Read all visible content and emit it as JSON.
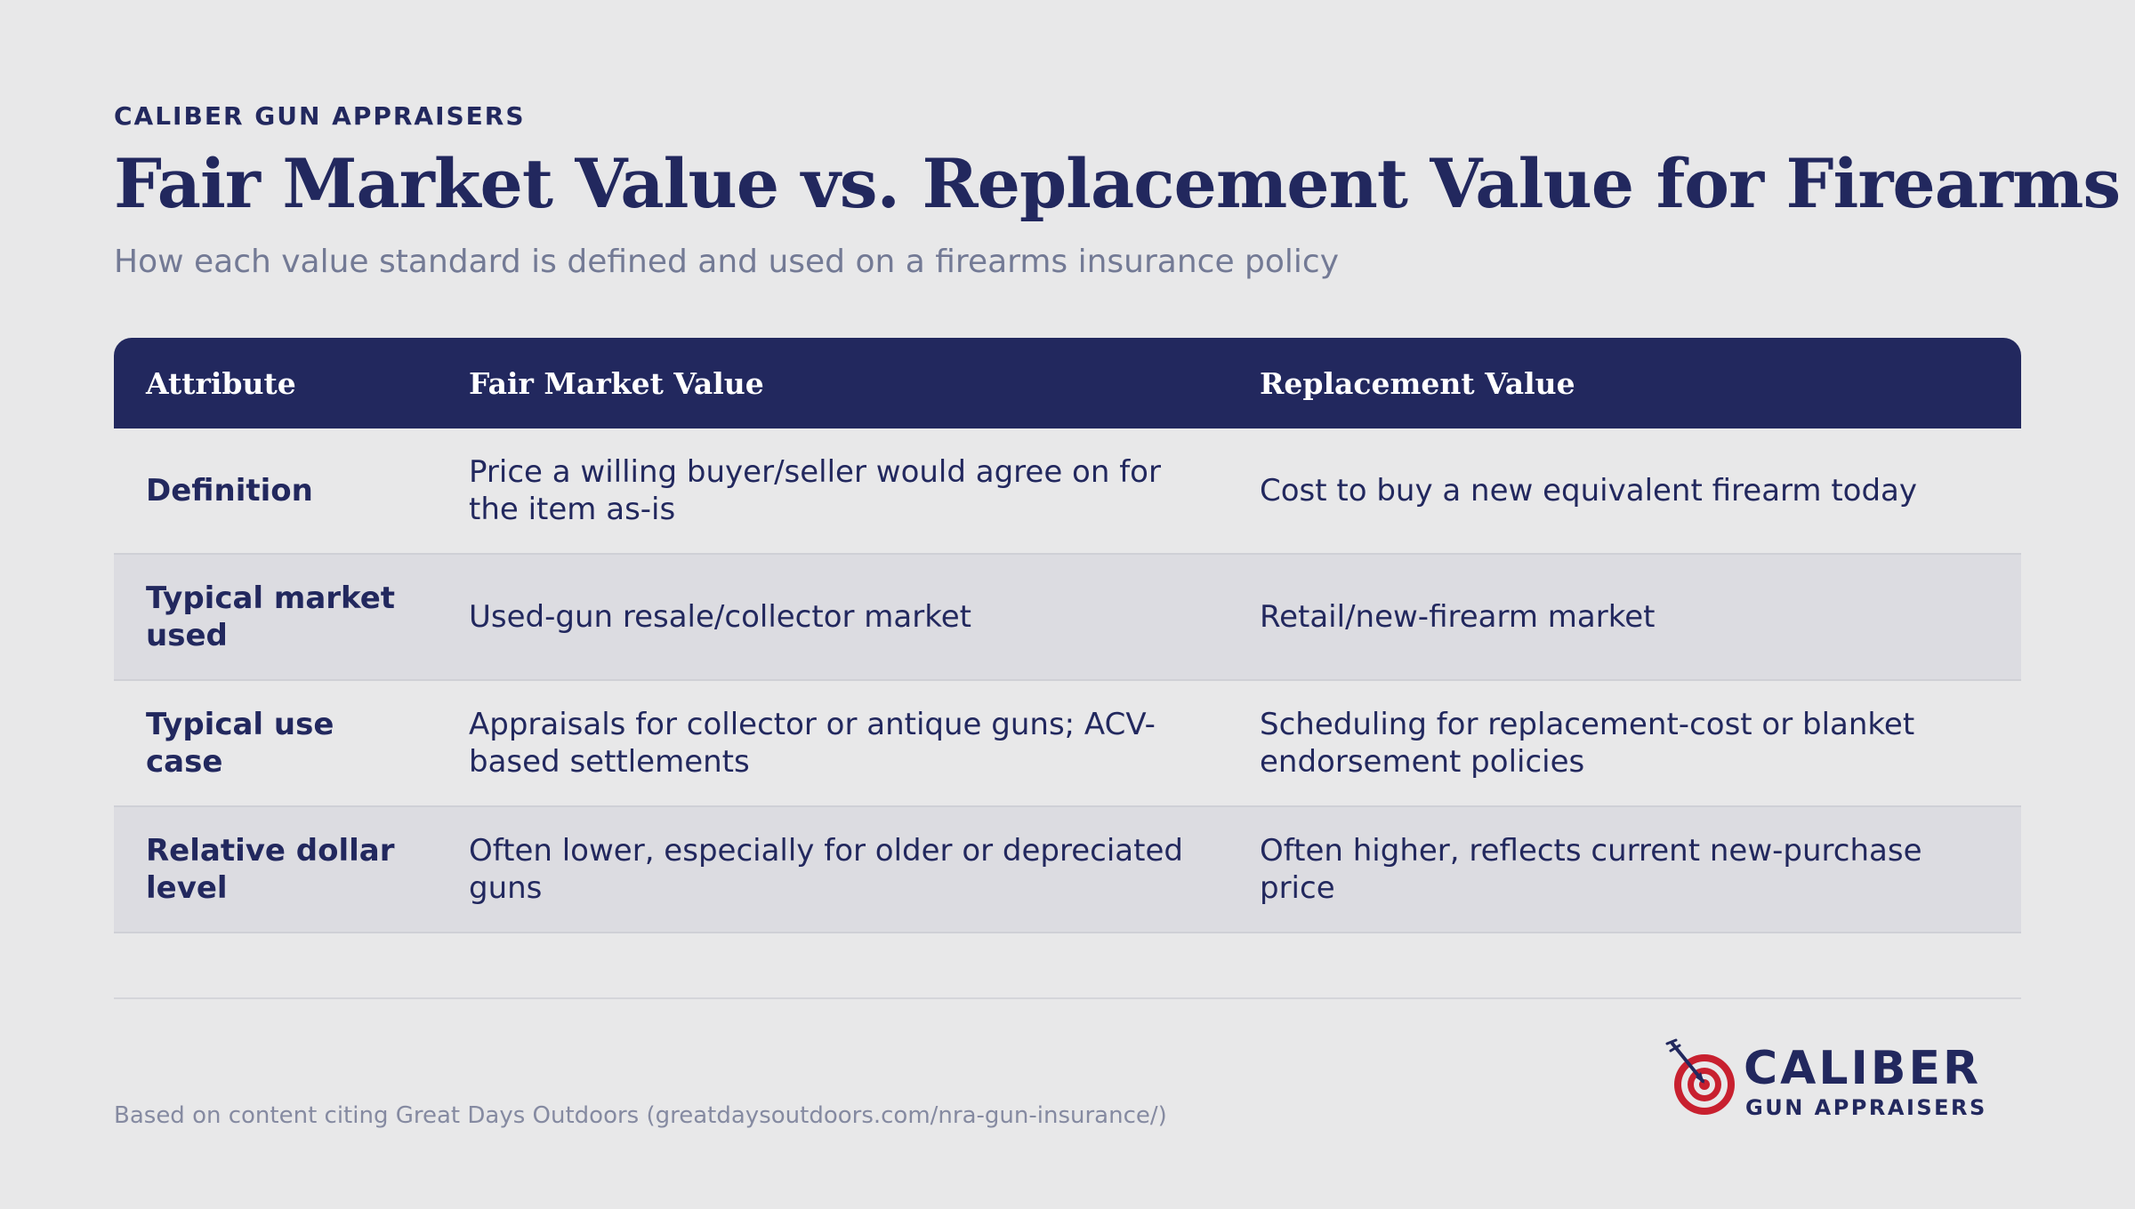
{
  "header": {
    "eyebrow": "CALIBER GUN APPRAISERS",
    "title": "Fair Market Value vs. Replacement Value for Firearms",
    "subtitle": "How each value standard is defined and used on a firearms insurance policy"
  },
  "table": {
    "columns": [
      "Attribute",
      "Fair Market Value",
      "Replacement Value"
    ],
    "rows": [
      {
        "attribute": "Definition",
        "fair_market_value": "Price a willing buyer/seller would agree on for the item as-is",
        "replacement_value": "Cost to buy a new equivalent firearm today"
      },
      {
        "attribute": "Typical market used",
        "fair_market_value": "Used-gun resale/collector market",
        "replacement_value": "Retail/new-firearm market"
      },
      {
        "attribute": "Typical use case",
        "fair_market_value": "Appraisals for collector or antique guns; ACV-based settlements",
        "replacement_value": "Scheduling for replacement-cost or blanket endorsement policies"
      },
      {
        "attribute": "Relative dollar level",
        "fair_market_value": "Often lower, especially for older or depreciated guns",
        "replacement_value": "Often higher, reflects current new-purchase price"
      }
    ]
  },
  "footer": {
    "source_note": "Based on content citing Great Days Outdoors (greatdaysoutdoors.com/nra-gun-insurance/)",
    "logo_word": "CALIBER",
    "logo_sub": "GUN APPRAISERS",
    "logo_icon": "target-with-arrow-icon"
  },
  "colors": {
    "navy": "#22285e",
    "background": "#e8e8e9",
    "alt_row": "#dcdce1",
    "target_red": "#c8202f"
  }
}
